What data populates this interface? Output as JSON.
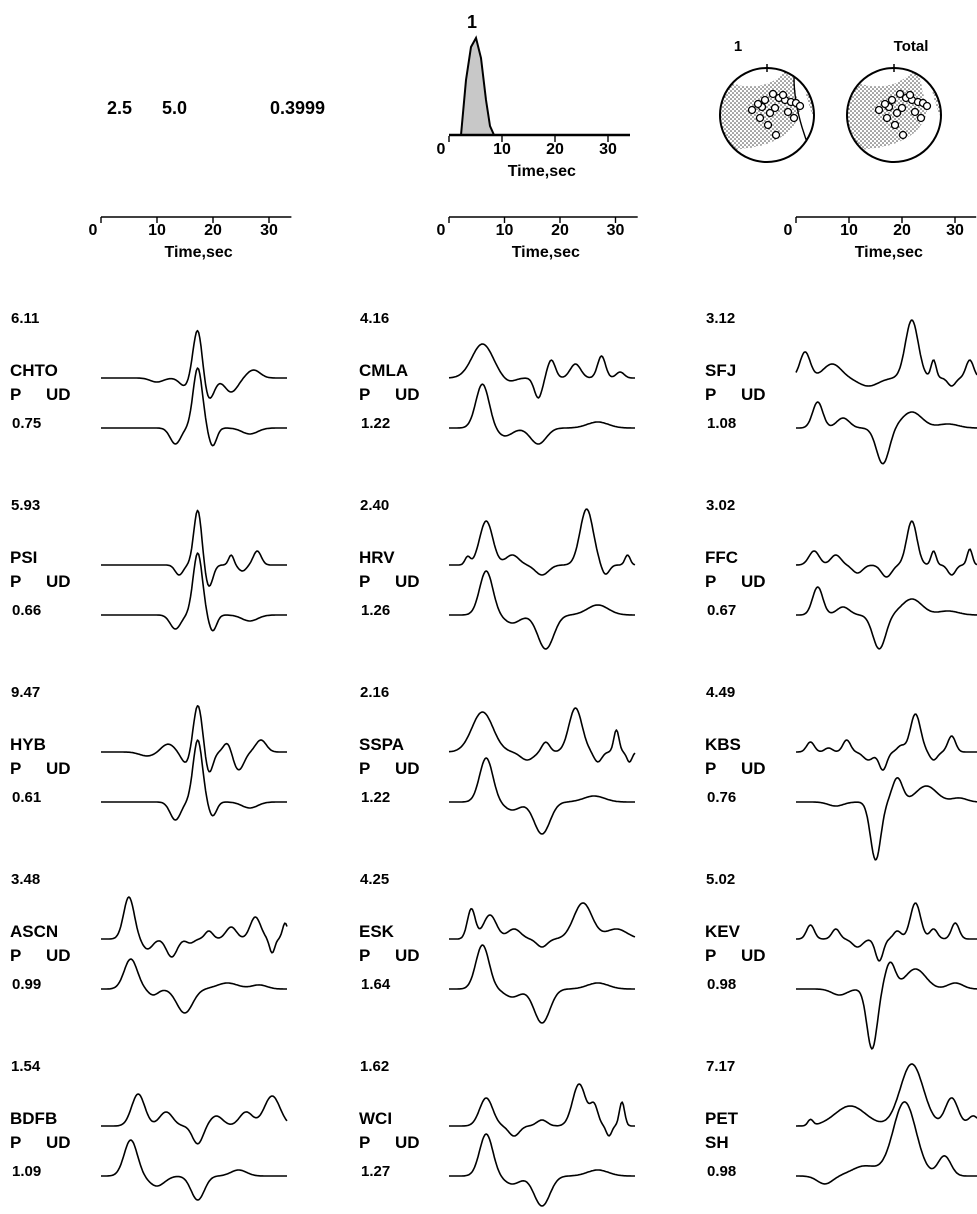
{
  "header": {
    "params": [
      "2.5",
      "5.0",
      "0.3999"
    ],
    "stf_label": "1",
    "mech_labels": [
      "1",
      "Total"
    ]
  },
  "axes": {
    "ticks": [
      "0",
      "10",
      "20",
      "30"
    ],
    "label": "Time,sec"
  },
  "stations": [
    {
      "name": "CHTO",
      "comp_a": "P",
      "comp_b": "UD",
      "amp": "6.11",
      "misfit": "0.75"
    },
    {
      "name": "PSI",
      "comp_a": "P",
      "comp_b": "UD",
      "amp": "5.93",
      "misfit": "0.66"
    },
    {
      "name": "HYB",
      "comp_a": "P",
      "comp_b": "UD",
      "amp": "9.47",
      "misfit": "0.61"
    },
    {
      "name": "ASCN",
      "comp_a": "P",
      "comp_b": "UD",
      "amp": "3.48",
      "misfit": "0.99"
    },
    {
      "name": "BDFB",
      "comp_a": "P",
      "comp_b": "UD",
      "amp": "1.54",
      "misfit": "1.09"
    },
    {
      "name": "CMLA",
      "comp_a": "P",
      "comp_b": "UD",
      "amp": "4.16",
      "misfit": "1.22"
    },
    {
      "name": "HRV",
      "comp_a": "P",
      "comp_b": "UD",
      "amp": "2.40",
      "misfit": "1.26"
    },
    {
      "name": "SSPA",
      "comp_a": "P",
      "comp_b": "UD",
      "amp": "2.16",
      "misfit": "1.22"
    },
    {
      "name": "ESK",
      "comp_a": "P",
      "comp_b": "UD",
      "amp": "4.25",
      "misfit": "1.64"
    },
    {
      "name": "WCI",
      "comp_a": "P",
      "comp_b": "UD",
      "amp": "1.62",
      "misfit": "1.27"
    },
    {
      "name": "SFJ",
      "comp_a": "P",
      "comp_b": "UD",
      "amp": "3.12",
      "misfit": "1.08"
    },
    {
      "name": "FFC",
      "comp_a": "P",
      "comp_b": "UD",
      "amp": "3.02",
      "misfit": "0.67"
    },
    {
      "name": "KBS",
      "comp_a": "P",
      "comp_b": "UD",
      "amp": "4.49",
      "misfit": "0.76"
    },
    {
      "name": "KEV",
      "comp_a": "P",
      "comp_b": "UD",
      "amp": "5.02",
      "misfit": "0.98"
    },
    {
      "name": "PET",
      "comp_a": "SH",
      "comp_b": "",
      "amp": "7.17",
      "misfit": "0.98"
    }
  ]
}
